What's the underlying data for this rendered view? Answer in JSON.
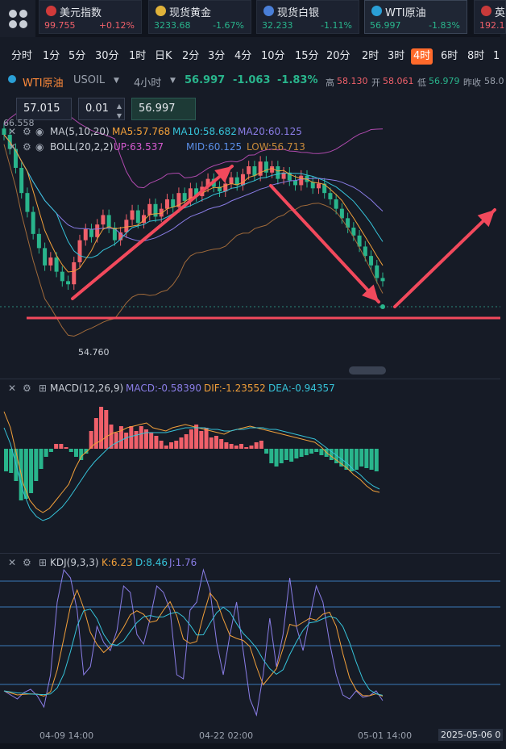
{
  "ticker": {
    "cards": [
      {
        "name": "美元指数",
        "price": "99.755",
        "pct": "+0.12%",
        "dir": "up",
        "flag_color": "#d03a3a"
      },
      {
        "name": "现货黄金",
        "price": "3233.68",
        "pct": "-1.67%",
        "dir": "down",
        "flag_color": "#e0b23a"
      },
      {
        "name": "现货白银",
        "price": "32.233",
        "pct": "-1.11%",
        "dir": "down",
        "flag_color": "#4a7fd8"
      },
      {
        "name": "WTI原油",
        "price": "56.997",
        "pct": "-1.83%",
        "dir": "down",
        "flag_color": "#2a9fd6"
      },
      {
        "name": "英",
        "price": "192.1",
        "pct": "",
        "dir": "down",
        "flag_color": "#c83a3a"
      }
    ]
  },
  "timeframes": [
    "分时",
    "1分",
    "5分",
    "30分",
    "1时",
    "日K",
    "2分",
    "3分",
    "4分",
    "10分",
    "15分",
    "20分",
    "2时",
    "3时",
    "4时",
    "6时",
    "8时",
    "1"
  ],
  "active_timeframe": "4时",
  "header": {
    "symbol": "WTI原油",
    "code": "USOIL",
    "period": "4小时",
    "price": "56.997",
    "change": "-1.063",
    "pct": "-1.83%",
    "high_label": "高",
    "high": "58.130",
    "open_label": "开",
    "open": "58.061",
    "low_label": "低",
    "low": "56.979",
    "prev_label": "昨收",
    "prev": "58.0"
  },
  "inputs": {
    "price_left": "57.015",
    "step": "0.01",
    "price_right": "56.997"
  },
  "main_chart": {
    "top_price_label": "66.558",
    "low_price_label": "54.760",
    "ma_legend": {
      "label": "MA(5,10,20)",
      "ma5": "MA5:57.768",
      "ma10": "MA10:58.682",
      "ma20": "MA20:60.125"
    },
    "boll_legend": {
      "label": "BOLL(20,2,2)",
      "up": "UP:63.537",
      "mid": "MID:60.125",
      "low": "LOW:56.713"
    }
  },
  "macd": {
    "label": "MACD(12,26,9)",
    "macd": "MACD:-0.58390",
    "dif": "DIF:-1.23552",
    "dea": "DEA:-0.94357"
  },
  "kdj": {
    "label": "KDJ(9,3,3)",
    "k": "K:6.23",
    "d": "D:8.46",
    "j": "J:1.76"
  },
  "x_axis": [
    "04-09 14:00",
    "04-22 02:00",
    "05-01 14:00",
    "2025-05-06 0"
  ],
  "colors": {
    "up": "#f0606a",
    "down": "#29b58c",
    "accent": "#ff6a2b",
    "arrow": "#f2495c"
  }
}
